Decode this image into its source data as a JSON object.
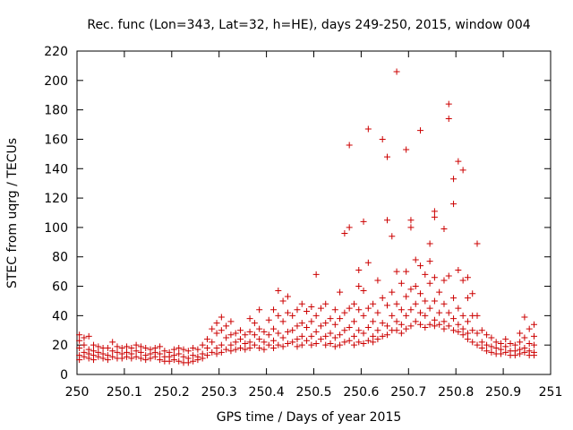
{
  "chart_data": {
    "type": "scatter",
    "title": "Rec. func (Lon=343, Lat=32, h=HE), days 249-250, 2015, window 004",
    "xlabel": "GPS time / Days of year 2015",
    "ylabel": "STEC from uqrg / TECUs",
    "xlim": [
      250,
      251
    ],
    "ylim": [
      0,
      220
    ],
    "x_ticks": [
      "250",
      "250.1",
      "250.2",
      "250.3",
      "250.4",
      "250.5",
      "250.6",
      "250.7",
      "250.8",
      "250.9",
      "251"
    ],
    "y_ticks": [
      "0",
      "20",
      "40",
      "60",
      "80",
      "100",
      "120",
      "140",
      "160",
      "180",
      "200",
      "220"
    ],
    "grid": false,
    "legend": "none",
    "marker": "plus",
    "marker_color": "#cc0000",
    "points": [
      [
        250.005,
        27
      ],
      [
        250.005,
        23
      ],
      [
        250.005,
        18
      ],
      [
        250.005,
        13
      ],
      [
        250.005,
        10
      ],
      [
        250.015,
        25
      ],
      [
        250.015,
        20
      ],
      [
        250.015,
        15
      ],
      [
        250.015,
        12
      ],
      [
        250.025,
        26
      ],
      [
        250.025,
        17
      ],
      [
        250.025,
        14
      ],
      [
        250.025,
        11
      ],
      [
        250.035,
        20
      ],
      [
        250.035,
        16
      ],
      [
        250.035,
        13
      ],
      [
        250.035,
        10
      ],
      [
        250.045,
        19
      ],
      [
        250.045,
        15
      ],
      [
        250.045,
        12
      ],
      [
        250.055,
        18
      ],
      [
        250.055,
        14
      ],
      [
        250.055,
        11
      ],
      [
        250.065,
        18
      ],
      [
        250.065,
        13
      ],
      [
        250.065,
        10
      ],
      [
        250.075,
        22
      ],
      [
        250.075,
        16
      ],
      [
        250.075,
        12
      ],
      [
        250.085,
        19
      ],
      [
        250.085,
        15
      ],
      [
        250.085,
        11
      ],
      [
        250.095,
        18
      ],
      [
        250.095,
        14
      ],
      [
        250.095,
        11
      ],
      [
        250.105,
        19
      ],
      [
        250.105,
        15
      ],
      [
        250.105,
        12
      ],
      [
        250.115,
        18
      ],
      [
        250.115,
        14
      ],
      [
        250.115,
        11
      ],
      [
        250.125,
        20
      ],
      [
        250.125,
        16
      ],
      [
        250.125,
        12
      ],
      [
        250.135,
        19
      ],
      [
        250.135,
        15
      ],
      [
        250.135,
        11
      ],
      [
        250.145,
        18
      ],
      [
        250.145,
        13
      ],
      [
        250.145,
        10
      ],
      [
        250.155,
        17
      ],
      [
        250.155,
        14
      ],
      [
        250.155,
        11
      ],
      [
        250.165,
        18
      ],
      [
        250.165,
        15
      ],
      [
        250.165,
        12
      ],
      [
        250.175,
        19
      ],
      [
        250.175,
        14
      ],
      [
        250.175,
        10
      ],
      [
        250.185,
        16
      ],
      [
        250.185,
        12
      ],
      [
        250.185,
        9
      ],
      [
        250.195,
        15
      ],
      [
        250.195,
        12
      ],
      [
        250.195,
        9
      ],
      [
        250.205,
        17
      ],
      [
        250.205,
        13
      ],
      [
        250.205,
        10
      ],
      [
        250.215,
        18
      ],
      [
        250.215,
        14
      ],
      [
        250.215,
        9
      ],
      [
        250.225,
        17
      ],
      [
        250.225,
        12
      ],
      [
        250.225,
        8
      ],
      [
        250.235,
        16
      ],
      [
        250.235,
        11
      ],
      [
        250.235,
        8
      ],
      [
        250.245,
        18
      ],
      [
        250.245,
        13
      ],
      [
        250.245,
        9
      ],
      [
        250.255,
        17
      ],
      [
        250.255,
        12
      ],
      [
        250.255,
        10
      ],
      [
        250.265,
        20
      ],
      [
        250.265,
        14
      ],
      [
        250.265,
        11
      ],
      [
        250.275,
        24
      ],
      [
        250.275,
        18
      ],
      [
        250.275,
        13
      ],
      [
        250.285,
        31
      ],
      [
        250.285,
        22
      ],
      [
        250.285,
        15
      ],
      [
        250.295,
        35
      ],
      [
        250.295,
        28
      ],
      [
        250.295,
        18
      ],
      [
        250.295,
        14
      ],
      [
        250.305,
        39
      ],
      [
        250.305,
        30
      ],
      [
        250.305,
        20
      ],
      [
        250.305,
        15
      ],
      [
        250.315,
        33
      ],
      [
        250.315,
        25
      ],
      [
        250.315,
        17
      ],
      [
        250.325,
        36
      ],
      [
        250.325,
        27
      ],
      [
        250.325,
        20
      ],
      [
        250.325,
        16
      ],
      [
        250.335,
        28
      ],
      [
        250.335,
        22
      ],
      [
        250.335,
        17
      ],
      [
        250.345,
        30
      ],
      [
        250.345,
        24
      ],
      [
        250.345,
        18
      ],
      [
        250.355,
        27
      ],
      [
        250.355,
        21
      ],
      [
        250.355,
        17
      ],
      [
        250.365,
        38
      ],
      [
        250.365,
        29
      ],
      [
        250.365,
        22
      ],
      [
        250.365,
        18
      ],
      [
        250.375,
        35
      ],
      [
        250.375,
        27
      ],
      [
        250.375,
        20
      ],
      [
        250.385,
        44
      ],
      [
        250.385,
        31
      ],
      [
        250.385,
        24
      ],
      [
        250.385,
        18
      ],
      [
        250.395,
        29
      ],
      [
        250.395,
        22
      ],
      [
        250.395,
        17
      ],
      [
        250.405,
        37
      ],
      [
        250.405,
        27
      ],
      [
        250.405,
        20
      ],
      [
        250.415,
        44
      ],
      [
        250.415,
        31
      ],
      [
        250.415,
        23
      ],
      [
        250.415,
        18
      ],
      [
        250.425,
        57
      ],
      [
        250.425,
        40
      ],
      [
        250.425,
        28
      ],
      [
        250.425,
        20
      ],
      [
        250.435,
        50
      ],
      [
        250.435,
        36
      ],
      [
        250.435,
        25
      ],
      [
        250.435,
        19
      ],
      [
        250.445,
        53
      ],
      [
        250.445,
        42
      ],
      [
        250.445,
        29
      ],
      [
        250.445,
        21
      ],
      [
        250.455,
        40
      ],
      [
        250.455,
        30
      ],
      [
        250.455,
        22
      ],
      [
        250.465,
        44
      ],
      [
        250.465,
        33
      ],
      [
        250.465,
        24
      ],
      [
        250.465,
        19
      ],
      [
        250.475,
        48
      ],
      [
        250.475,
        35
      ],
      [
        250.475,
        26
      ],
      [
        250.475,
        20
      ],
      [
        250.485,
        43
      ],
      [
        250.485,
        32
      ],
      [
        250.485,
        23
      ],
      [
        250.495,
        46
      ],
      [
        250.495,
        36
      ],
      [
        250.495,
        26
      ],
      [
        250.495,
        20
      ],
      [
        250.505,
        68
      ],
      [
        250.505,
        40
      ],
      [
        250.505,
        29
      ],
      [
        250.505,
        21
      ],
      [
        250.515,
        45
      ],
      [
        250.515,
        33
      ],
      [
        250.515,
        24
      ],
      [
        250.525,
        48
      ],
      [
        250.525,
        35
      ],
      [
        250.525,
        26
      ],
      [
        250.525,
        20
      ],
      [
        250.535,
        38
      ],
      [
        250.535,
        28
      ],
      [
        250.535,
        21
      ],
      [
        250.545,
        44
      ],
      [
        250.545,
        34
      ],
      [
        250.545,
        25
      ],
      [
        250.545,
        19
      ],
      [
        250.555,
        56
      ],
      [
        250.555,
        38
      ],
      [
        250.555,
        27
      ],
      [
        250.555,
        20
      ],
      [
        250.565,
        96
      ],
      [
        250.565,
        42
      ],
      [
        250.565,
        30
      ],
      [
        250.565,
        22
      ],
      [
        250.575,
        156
      ],
      [
        250.575,
        100
      ],
      [
        250.575,
        45
      ],
      [
        250.575,
        32
      ],
      [
        250.575,
        23
      ],
      [
        250.585,
        48
      ],
      [
        250.585,
        36
      ],
      [
        250.585,
        26
      ],
      [
        250.585,
        20
      ],
      [
        250.595,
        71
      ],
      [
        250.595,
        60
      ],
      [
        250.595,
        44
      ],
      [
        250.595,
        30
      ],
      [
        250.595,
        22
      ],
      [
        250.605,
        104
      ],
      [
        250.605,
        57
      ],
      [
        250.605,
        40
      ],
      [
        250.605,
        28
      ],
      [
        250.605,
        21
      ],
      [
        250.615,
        167
      ],
      [
        250.615,
        76
      ],
      [
        250.615,
        45
      ],
      [
        250.615,
        32
      ],
      [
        250.615,
        23
      ],
      [
        250.625,
        48
      ],
      [
        250.625,
        36
      ],
      [
        250.625,
        26
      ],
      [
        250.625,
        22
      ],
      [
        250.635,
        64
      ],
      [
        250.635,
        42
      ],
      [
        250.635,
        30
      ],
      [
        250.635,
        24
      ],
      [
        250.645,
        160
      ],
      [
        250.645,
        52
      ],
      [
        250.645,
        35
      ],
      [
        250.645,
        26
      ],
      [
        250.655,
        148
      ],
      [
        250.655,
        105
      ],
      [
        250.655,
        47
      ],
      [
        250.655,
        33
      ],
      [
        250.655,
        27
      ],
      [
        250.665,
        94
      ],
      [
        250.665,
        56
      ],
      [
        250.665,
        40
      ],
      [
        250.665,
        30
      ],
      [
        250.675,
        206
      ],
      [
        250.675,
        70
      ],
      [
        250.675,
        48
      ],
      [
        250.675,
        36
      ],
      [
        250.675,
        30
      ],
      [
        250.685,
        62
      ],
      [
        250.685,
        44
      ],
      [
        250.685,
        34
      ],
      [
        250.685,
        28
      ],
      [
        250.695,
        153
      ],
      [
        250.695,
        70
      ],
      [
        250.695,
        53
      ],
      [
        250.695,
        40
      ],
      [
        250.695,
        31
      ],
      [
        250.705,
        105
      ],
      [
        250.705,
        100
      ],
      [
        250.705,
        58
      ],
      [
        250.705,
        44
      ],
      [
        250.705,
        33
      ],
      [
        250.715,
        78
      ],
      [
        250.715,
        60
      ],
      [
        250.715,
        48
      ],
      [
        250.715,
        36
      ],
      [
        250.725,
        166
      ],
      [
        250.725,
        74
      ],
      [
        250.725,
        55
      ],
      [
        250.725,
        42
      ],
      [
        250.725,
        34
      ],
      [
        250.735,
        68
      ],
      [
        250.735,
        50
      ],
      [
        250.735,
        40
      ],
      [
        250.735,
        32
      ],
      [
        250.745,
        89
      ],
      [
        250.745,
        77
      ],
      [
        250.745,
        62
      ],
      [
        250.745,
        45
      ],
      [
        250.745,
        34
      ],
      [
        250.755,
        111
      ],
      [
        250.755,
        107
      ],
      [
        250.755,
        66
      ],
      [
        250.755,
        50
      ],
      [
        250.755,
        37
      ],
      [
        250.755,
        33
      ],
      [
        250.765,
        56
      ],
      [
        250.765,
        42
      ],
      [
        250.765,
        34
      ],
      [
        250.775,
        99
      ],
      [
        250.775,
        64
      ],
      [
        250.775,
        48
      ],
      [
        250.775,
        36
      ],
      [
        250.775,
        31
      ],
      [
        250.785,
        184
      ],
      [
        250.785,
        174
      ],
      [
        250.785,
        67
      ],
      [
        250.785,
        42
      ],
      [
        250.785,
        33
      ],
      [
        250.795,
        133
      ],
      [
        250.795,
        116
      ],
      [
        250.795,
        52
      ],
      [
        250.795,
        38
      ],
      [
        250.795,
        30
      ],
      [
        250.805,
        145
      ],
      [
        250.805,
        71
      ],
      [
        250.805,
        45
      ],
      [
        250.805,
        34
      ],
      [
        250.805,
        29
      ],
      [
        250.815,
        139
      ],
      [
        250.815,
        64
      ],
      [
        250.815,
        40
      ],
      [
        250.815,
        31
      ],
      [
        250.815,
        27
      ],
      [
        250.825,
        66
      ],
      [
        250.825,
        52
      ],
      [
        250.825,
        36
      ],
      [
        250.825,
        28
      ],
      [
        250.825,
        24
      ],
      [
        250.835,
        55
      ],
      [
        250.835,
        40
      ],
      [
        250.835,
        30
      ],
      [
        250.835,
        22
      ],
      [
        250.845,
        89
      ],
      [
        250.845,
        40
      ],
      [
        250.845,
        28
      ],
      [
        250.845,
        20
      ],
      [
        250.855,
        30
      ],
      [
        250.855,
        22
      ],
      [
        250.855,
        18
      ],
      [
        250.865,
        27
      ],
      [
        250.865,
        20
      ],
      [
        250.865,
        16
      ],
      [
        250.875,
        25
      ],
      [
        250.875,
        19
      ],
      [
        250.875,
        15
      ],
      [
        250.885,
        22
      ],
      [
        250.885,
        18
      ],
      [
        250.885,
        14
      ],
      [
        250.895,
        21
      ],
      [
        250.895,
        17
      ],
      [
        250.895,
        14
      ],
      [
        250.905,
        24
      ],
      [
        250.905,
        19
      ],
      [
        250.905,
        15
      ],
      [
        250.915,
        21
      ],
      [
        250.915,
        16
      ],
      [
        250.915,
        13
      ],
      [
        250.925,
        20
      ],
      [
        250.925,
        16
      ],
      [
        250.925,
        13
      ],
      [
        250.935,
        28
      ],
      [
        250.935,
        22
      ],
      [
        250.935,
        17
      ],
      [
        250.935,
        14
      ],
      [
        250.945,
        39
      ],
      [
        250.945,
        25
      ],
      [
        250.945,
        18
      ],
      [
        250.945,
        15
      ],
      [
        250.955,
        31
      ],
      [
        250.955,
        21
      ],
      [
        250.955,
        16
      ],
      [
        250.955,
        13
      ],
      [
        250.965,
        34
      ],
      [
        250.965,
        26
      ],
      [
        250.965,
        20
      ],
      [
        250.965,
        15
      ],
      [
        250.965,
        13
      ]
    ]
  }
}
